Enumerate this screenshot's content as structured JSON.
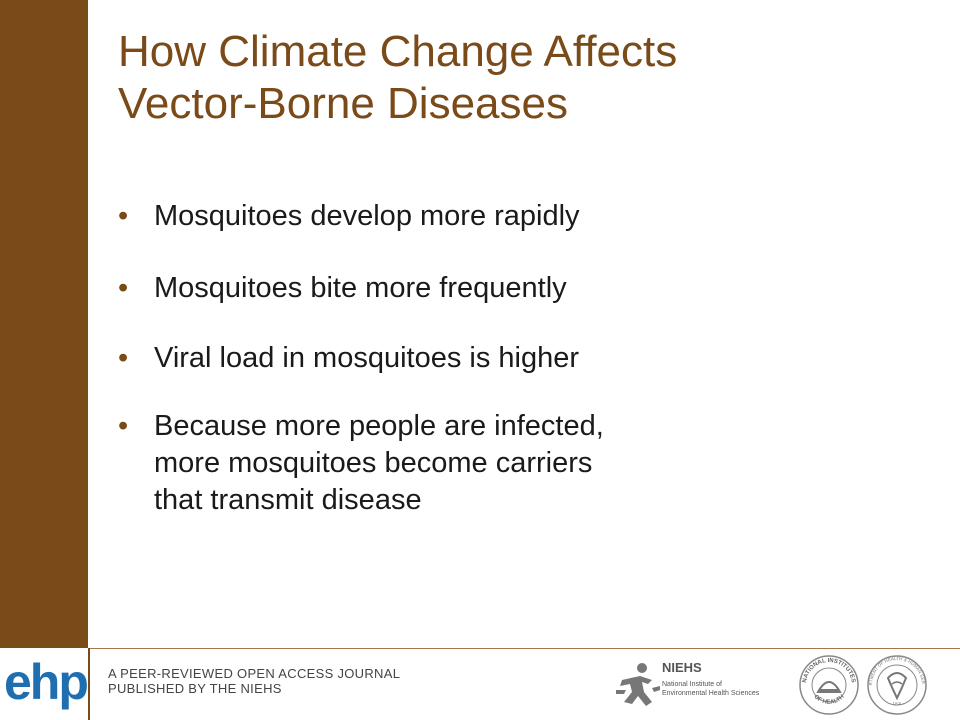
{
  "slide": {
    "title_line1": "How Climate Change Affects",
    "title_line2": "Vector-Borne Diseases",
    "bullet_glyph": "•",
    "bullets": [
      "Mosquitoes develop more rapidly",
      "Mosquitoes bite more frequently",
      "Viral load in mosquitoes is higher",
      "Because more people are infected,\nmore mosquitoes become carriers\nthat transmit disease"
    ]
  },
  "footer": {
    "logo_text": "ehp",
    "journal_line1": "A PEER-REVIEWED OPEN ACCESS JOURNAL",
    "journal_line2": "PUBLISHED BY THE NIEHS",
    "niehs_name": "NIEHS",
    "niehs_sub1": "National Institute of",
    "niehs_sub2": "Environmental Health Sciences",
    "nih_seal_text": "NATIONAL INSTITUTES OF HEALTH",
    "hhs_seal_text": "DEPARTMENT OF HEALTH & HUMAN SERVICES · USA"
  },
  "colors": {
    "accent_brown": "#7a4a18",
    "logo_blue": "#1f6fb0",
    "text": "#1a1a1a"
  },
  "icons": [
    "niehs-figure-icon",
    "nih-seal-icon",
    "hhs-seal-icon"
  ]
}
